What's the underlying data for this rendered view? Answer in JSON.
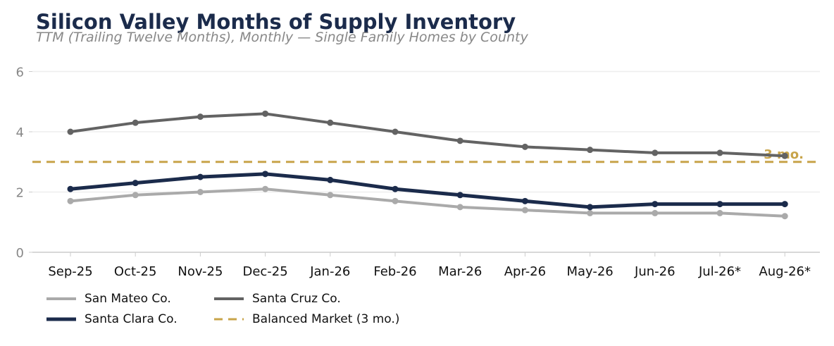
{
  "chart_data": {
    "type": "line",
    "title": "Silicon Valley Months of Supply Inventory",
    "subtitle": "TTM (Trailing Twelve Months), Monthly — Single Family Homes by County",
    "categories": [
      "Sep-25",
      "Oct-25",
      "Nov-25",
      "Dec-25",
      "Jan-26",
      "Feb-26",
      "Mar-26",
      "Apr-26",
      "May-26",
      "Jun-26",
      "Jul-26*",
      "Aug-26*"
    ],
    "series": [
      {
        "name": "San Mateo Co.",
        "color": "#aaaaaa",
        "values": [
          1.7,
          1.9,
          2.0,
          2.1,
          1.9,
          1.7,
          1.5,
          1.4,
          1.3,
          1.3,
          1.3,
          1.2
        ]
      },
      {
        "name": "Santa Clara Co.",
        "color": "#1b2b4b",
        "values": [
          2.1,
          2.3,
          2.5,
          2.6,
          2.4,
          2.1,
          1.9,
          1.7,
          1.5,
          1.6,
          1.6,
          1.6
        ]
      },
      {
        "name": "Santa Cruz Co.",
        "color": "#636363",
        "values": [
          4.0,
          4.3,
          4.5,
          4.6,
          4.3,
          4.0,
          3.7,
          3.5,
          3.4,
          3.3,
          3.3,
          3.2
        ]
      }
    ],
    "reference_line": {
      "name": "Balanced Market (3 mo.)",
      "value": 3,
      "label": "3 mo.",
      "color": "#c8a44a",
      "style": "dashed"
    },
    "ylim": [
      0,
      6
    ],
    "yticks": [
      0,
      2,
      4,
      6
    ],
    "xlabel": "",
    "ylabel": "",
    "grid": "horizontal",
    "legend_position": "bottom-left",
    "legend": [
      {
        "label": "San Mateo Co.",
        "color": "#aaaaaa",
        "style": "solid"
      },
      {
        "label": "Santa Cruz Co.",
        "color": "#636363",
        "style": "solid"
      },
      {
        "label": "Santa Clara Co.",
        "color": "#1b2b4b",
        "style": "solid"
      },
      {
        "label": "Balanced Market (3 mo.)",
        "color": "#c8a44a",
        "style": "dashed"
      }
    ]
  }
}
